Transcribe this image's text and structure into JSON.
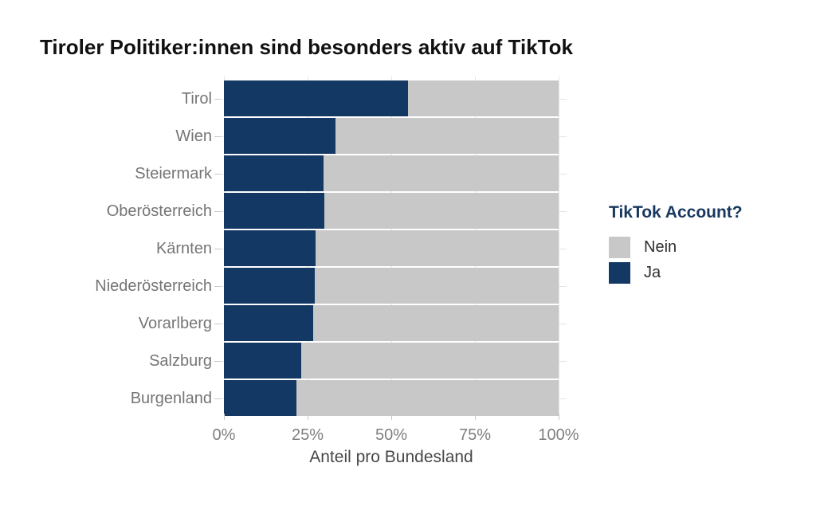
{
  "title": "Tiroler Politiker:innen sind besonders aktiv auf TikTok",
  "chart_data": {
    "type": "bar",
    "orientation": "horizontal",
    "stacked": true,
    "title": "Tiroler Politiker:innen sind besonders aktiv auf TikTok",
    "categories": [
      "Tirol",
      "Wien",
      "Steiermark",
      "Oberösterreich",
      "Kärnten",
      "Niederösterreich",
      "Vorarlberg",
      "Salzburg",
      "Burgenland"
    ],
    "series": [
      {
        "name": "Ja",
        "color": "#123863",
        "values": [
          55.0,
          33.3,
          29.8,
          30.0,
          27.4,
          27.1,
          26.7,
          23.1,
          21.7
        ]
      },
      {
        "name": "Nein",
        "color": "#c8c8c8",
        "values": [
          45.0,
          66.7,
          70.2,
          70.0,
          72.6,
          72.9,
          73.3,
          76.9,
          78.3
        ]
      }
    ],
    "xlabel": "Anteil pro Bundesland",
    "ylabel": "",
    "xlim": [
      0,
      100
    ],
    "x_ticks": [
      {
        "value": 0,
        "label": "0%"
      },
      {
        "value": 25,
        "label": "25%"
      },
      {
        "value": 50,
        "label": "50%"
      },
      {
        "value": 75,
        "label": "75%"
      },
      {
        "value": 100,
        "label": "100%"
      }
    ],
    "grid": true,
    "legend": {
      "title": "TikTok Account?",
      "position": "right",
      "entries": [
        {
          "label": "Nein",
          "color": "#c8c8c8"
        },
        {
          "label": "Ja",
          "color": "#123863"
        }
      ]
    }
  },
  "colors": {
    "background": "#ffffff",
    "grid": "#e4e4e4",
    "tick": "#c9c9c9",
    "axis_text": "#7f7f7f",
    "axis_title": "#474747",
    "title_text": "#111111",
    "legend_title": "#17375e"
  }
}
